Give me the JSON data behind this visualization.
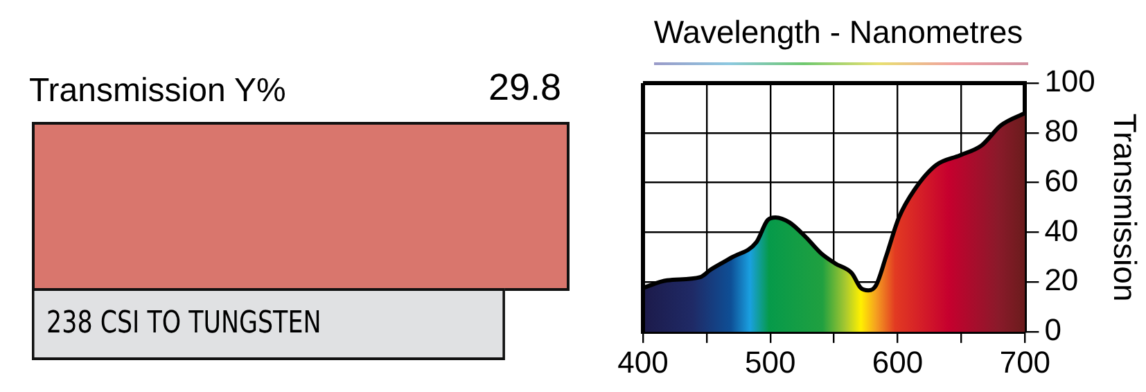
{
  "chart_data": [
    {
      "type": "other",
      "title": "Transmission Y%",
      "annotations": [
        "29.8",
        "238 CSI TO TUNGSTEN"
      ],
      "color": "#d9766d"
    },
    {
      "type": "area",
      "title": "Wavelength - Nanometres",
      "ylabel": "Transmission",
      "series": [
        {
          "color": "#000000",
          "x": [
            400,
            419,
            445,
            453,
            470,
            489,
            498,
            504,
            515,
            528,
            540,
            551,
            564,
            571,
            577,
            583,
            591,
            601,
            613,
            630,
            649,
            666,
            681,
            700
          ],
          "values": [
            17.7,
            20.7,
            22,
            25,
            30,
            36,
            45,
            46,
            44,
            38,
            31.5,
            27.5,
            23.6,
            17.7,
            16.7,
            18.7,
            30.5,
            46,
            57,
            67,
            71,
            75,
            83,
            88
          ]
        }
      ],
      "xlim": [
        400,
        700
      ],
      "xticks": [
        400,
        {
          "value": 450,
          "label": null
        },
        500,
        {
          "value": 550,
          "label": null
        },
        600,
        {
          "value": 650,
          "label": null
        },
        700
      ],
      "ylim": [
        0,
        100
      ],
      "yticks": [
        0,
        20,
        40,
        60,
        80,
        100
      ],
      "grid": true,
      "legend": false,
      "marker": "none",
      "line_style": "solid"
    }
  ]
}
